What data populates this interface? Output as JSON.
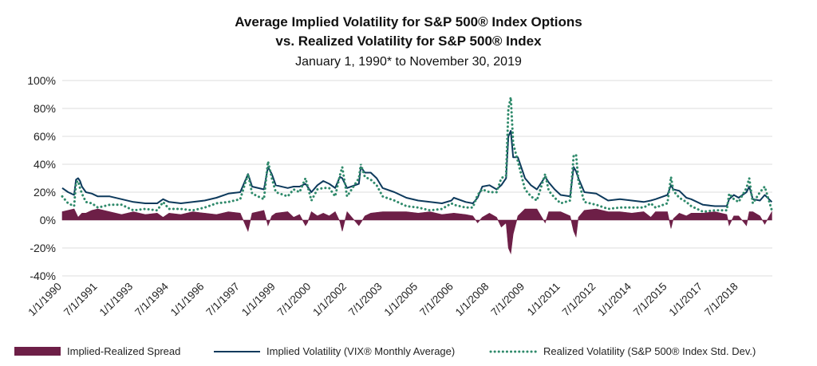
{
  "chart_data": {
    "type": "line",
    "title_line1": "Average Implied Volatility for S&P 500® Index Options",
    "title_line2": "vs. Realized Volatility for S&P 500® Index",
    "subtitle": "January 1, 1990* to November 30, 2019",
    "y_ticks": [
      "100%",
      "80%",
      "60%",
      "40%",
      "20%",
      "0%",
      "-20%",
      "-40%"
    ],
    "ylim": [
      -40,
      100
    ],
    "x_ticks": [
      "1/1/1990",
      "7/1/1991",
      "1/1/1993",
      "7/1/1994",
      "1/1/1996",
      "7/1/1997",
      "1/1/1999",
      "7/1/2000",
      "1/1/2002",
      "7/1/2003",
      "1/1/2005",
      "7/1/2006",
      "1/1/2008",
      "7/1/2009",
      "1/1/2011",
      "7/1/2012",
      "1/1/2014",
      "7/1/2015",
      "1/1/2017",
      "7/1/2018"
    ],
    "xlim": [
      1990.0,
      2019.92
    ],
    "grid": true,
    "legend_position": "bottom",
    "series": [
      {
        "name": "Implied-Realized Spread",
        "kind": "area",
        "color": "#6d1f47",
        "x": [
          1990.0,
          1990.5,
          1990.67,
          1990.83,
          1991.0,
          1991.25,
          1991.5,
          1992.0,
          1992.5,
          1993.0,
          1993.5,
          1994.0,
          1994.25,
          1994.5,
          1995.0,
          1995.5,
          1996.0,
          1996.5,
          1997.0,
          1997.5,
          1997.83,
          1998.0,
          1998.5,
          1998.67,
          1998.83,
          1999.0,
          1999.5,
          1999.75,
          2000.0,
          2000.25,
          2000.33,
          2000.5,
          2000.75,
          2001.0,
          2001.25,
          2001.5,
          2001.7,
          2001.8,
          2002.0,
          2002.5,
          2002.58,
          2002.75,
          2003.0,
          2003.5,
          2004.0,
          2004.5,
          2005.0,
          2005.5,
          2006.0,
          2006.5,
          2007.0,
          2007.3,
          2007.5,
          2007.7,
          2008.0,
          2008.3,
          2008.5,
          2008.7,
          2008.8,
          2008.9,
          2009.0,
          2009.2,
          2009.5,
          2009.75,
          2010.0,
          2010.35,
          2010.5,
          2010.75,
          2011.0,
          2011.4,
          2011.55,
          2011.65,
          2011.75,
          2012.0,
          2012.5,
          2013.0,
          2013.5,
          2014.0,
          2014.5,
          2014.8,
          2015.0,
          2015.5,
          2015.65,
          2015.75,
          2016.0,
          2016.3,
          2016.5,
          2017.0,
          2017.5,
          2018.0,
          2018.1,
          2018.3,
          2018.5,
          2018.83,
          2018.95,
          2019.1,
          2019.4,
          2019.6,
          2019.9
        ],
        "values": [
          6,
          8,
          2,
          5,
          5,
          7,
          8,
          6,
          4,
          6,
          4,
          5,
          2,
          5,
          4,
          6,
          5,
          4,
          6,
          5,
          -8,
          5,
          7,
          -4,
          3,
          5,
          6,
          2,
          4,
          -4,
          -2,
          6,
          3,
          5,
          3,
          6,
          -1,
          -8,
          6,
          -4,
          -2,
          3,
          5,
          6,
          6,
          6,
          5,
          6,
          4,
          5,
          4,
          3,
          -2,
          2,
          5,
          2,
          -5,
          -2,
          -20,
          -24,
          -10,
          3,
          8,
          8,
          8,
          -2,
          6,
          6,
          6,
          3,
          -8,
          -12,
          2,
          7,
          8,
          6,
          6,
          5,
          6,
          2,
          6,
          6,
          -6,
          1,
          5,
          3,
          5,
          5,
          6,
          4,
          -4,
          3,
          3,
          -4,
          6,
          6,
          3,
          -3,
          6
        ]
      },
      {
        "name": "Implied Volatility (VIX® Monthly Average)",
        "kind": "line",
        "color": "#0d3a5c",
        "x": [
          1990.0,
          1990.25,
          1990.5,
          1990.58,
          1990.67,
          1990.75,
          1990.83,
          1991.0,
          1991.25,
          1991.5,
          1992.0,
          1992.5,
          1993.0,
          1993.5,
          1994.0,
          1994.25,
          1994.5,
          1995.0,
          1995.5,
          1996.0,
          1996.5,
          1997.0,
          1997.5,
          1997.83,
          1998.0,
          1998.5,
          1998.67,
          1998.83,
          1999.0,
          1999.5,
          1999.75,
          2000.0,
          2000.25,
          2000.5,
          2000.75,
          2001.0,
          2001.25,
          2001.5,
          2001.7,
          2001.8,
          2002.0,
          2002.5,
          2002.58,
          2002.75,
          2003.0,
          2003.25,
          2003.5,
          2004.0,
          2004.5,
          2005.0,
          2005.5,
          2006.0,
          2006.4,
          2006.5,
          2007.0,
          2007.3,
          2007.5,
          2007.7,
          2008.0,
          2008.3,
          2008.5,
          2008.7,
          2008.8,
          2008.9,
          2009.0,
          2009.2,
          2009.5,
          2009.75,
          2010.0,
          2010.35,
          2010.5,
          2010.75,
          2011.0,
          2011.4,
          2011.55,
          2011.65,
          2011.75,
          2012.0,
          2012.5,
          2013.0,
          2013.5,
          2014.0,
          2014.5,
          2014.8,
          2015.0,
          2015.5,
          2015.65,
          2015.75,
          2016.0,
          2016.3,
          2016.5,
          2017.0,
          2017.5,
          2018.0,
          2018.1,
          2018.3,
          2018.5,
          2018.83,
          2018.95,
          2019.1,
          2019.4,
          2019.6,
          2019.9
        ],
        "values": [
          23,
          20,
          18,
          29,
          30,
          28,
          24,
          20,
          19,
          17,
          17,
          15,
          13,
          12,
          12,
          15,
          13,
          12,
          13,
          14,
          16,
          19,
          20,
          33,
          24,
          22,
          38,
          33,
          25,
          23,
          24,
          24,
          26,
          20,
          25,
          28,
          26,
          23,
          31,
          30,
          23,
          26,
          38,
          34,
          34,
          30,
          23,
          20,
          16,
          14,
          13,
          12,
          14,
          16,
          13,
          12,
          16,
          24,
          25,
          22,
          25,
          30,
          60,
          64,
          45,
          45,
          30,
          25,
          22,
          31,
          27,
          22,
          18,
          17,
          38,
          35,
          30,
          20,
          19,
          14,
          15,
          14,
          13,
          14,
          15,
          18,
          25,
          22,
          21,
          16,
          15,
          11,
          10,
          10,
          15,
          18,
          16,
          20,
          24,
          15,
          14,
          18,
          13
        ]
      },
      {
        "name": "Realized Volatility (S&P 500® Index Std. Dev.)",
        "kind": "dotted",
        "color": "#2f8a6b",
        "x": [
          1990.0,
          1990.25,
          1990.5,
          1990.58,
          1990.67,
          1990.75,
          1990.83,
          1991.0,
          1991.25,
          1991.5,
          1992.0,
          1992.5,
          1993.0,
          1993.5,
          1994.0,
          1994.25,
          1994.5,
          1995.0,
          1995.5,
          1996.0,
          1996.5,
          1997.0,
          1997.5,
          1997.83,
          1998.0,
          1998.5,
          1998.67,
          1998.83,
          1999.0,
          1999.5,
          1999.75,
          2000.0,
          2000.25,
          2000.5,
          2000.75,
          2001.0,
          2001.25,
          2001.5,
          2001.7,
          2001.8,
          2002.0,
          2002.5,
          2002.58,
          2002.75,
          2003.0,
          2003.25,
          2003.5,
          2004.0,
          2004.5,
          2005.0,
          2005.5,
          2006.0,
          2006.4,
          2006.5,
          2007.0,
          2007.3,
          2007.5,
          2007.7,
          2008.0,
          2008.3,
          2008.5,
          2008.7,
          2008.8,
          2008.9,
          2009.0,
          2009.2,
          2009.5,
          2009.75,
          2010.0,
          2010.35,
          2010.5,
          2010.75,
          2011.0,
          2011.4,
          2011.55,
          2011.65,
          2011.75,
          2012.0,
          2012.5,
          2013.0,
          2013.5,
          2014.0,
          2014.5,
          2014.8,
          2015.0,
          2015.5,
          2015.65,
          2015.75,
          2016.0,
          2016.3,
          2016.5,
          2017.0,
          2017.5,
          2018.0,
          2018.1,
          2018.3,
          2018.5,
          2018.83,
          2018.95,
          2019.1,
          2019.4,
          2019.6,
          2019.9
        ],
        "values": [
          17,
          12,
          10,
          27,
          28,
          23,
          19,
          13,
          12,
          9,
          11,
          11,
          7,
          8,
          7,
          13,
          8,
          8,
          7,
          9,
          12,
          13,
          15,
          33,
          19,
          15,
          42,
          30,
          20,
          17,
          22,
          20,
          30,
          14,
          22,
          23,
          23,
          17,
          32,
          38,
          17,
          30,
          40,
          31,
          29,
          25,
          17,
          14,
          10,
          9,
          7,
          8,
          12,
          11,
          9,
          9,
          18,
          22,
          20,
          20,
          30,
          32,
          80,
          88,
          55,
          42,
          22,
          17,
          14,
          33,
          21,
          16,
          12,
          14,
          46,
          47,
          28,
          13,
          11,
          8,
          9,
          9,
          9,
          12,
          9,
          12,
          31,
          21,
          16,
          13,
          10,
          6,
          7,
          7,
          19,
          15,
          13,
          23,
          30,
          12,
          20,
          24,
          7
        ]
      }
    ]
  }
}
